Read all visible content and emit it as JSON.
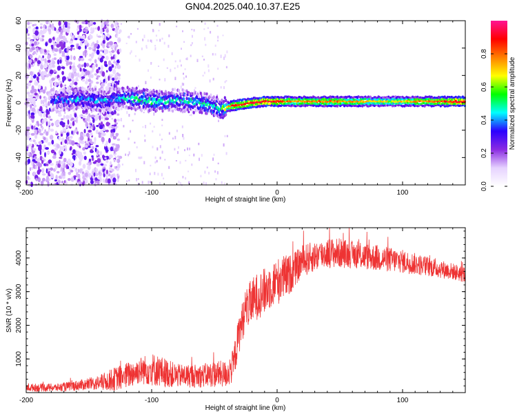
{
  "figure_title": "GN04.2025.040.10.37.E25",
  "chart_data": [
    {
      "type": "heatmap",
      "title": "",
      "xlabel": "Height of straight line (km)",
      "ylabel": "Frequency (Hz)",
      "xlim": [
        -200,
        150
      ],
      "ylim": [
        -60,
        60
      ],
      "xticks": [
        -200,
        -100,
        0,
        100
      ],
      "yticks": [
        -60,
        -40,
        -20,
        0,
        20,
        40,
        60
      ],
      "colorbar": {
        "label": "Normalized spectral amplitude",
        "range": [
          0,
          1
        ],
        "ticks": [
          "0.0",
          "0.2",
          "0.4",
          "0.6",
          "0.8"
        ],
        "colormap": [
          "#ffffff",
          "#e6d2ff",
          "#8a2be2",
          "#2b00ff",
          "#00ffff",
          "#00ff00",
          "#ffff00",
          "#ff8000",
          "#ff0000",
          "#ff1493"
        ]
      },
      "ridge": {
        "x": [
          -175,
          -160,
          -140,
          -120,
          -100,
          -80,
          -60,
          -45,
          -35,
          -20,
          -10,
          0,
          10,
          30,
          60,
          90,
          120,
          150
        ],
        "frequency": [
          2,
          3,
          2,
          4,
          1,
          2,
          0,
          -4,
          -2,
          0,
          1,
          1,
          1,
          1,
          1,
          1,
          1,
          1
        ],
        "amplitude": [
          0.35,
          0.4,
          0.4,
          0.45,
          0.5,
          0.45,
          0.45,
          0.5,
          0.85,
          0.9,
          0.9,
          0.9,
          0.75,
          0.8,
          0.75,
          0.65,
          0.8,
          0.9
        ]
      }
    },
    {
      "type": "line",
      "title": "",
      "xlabel": "Height of straight line (km)",
      "ylabel": "SNR (10 * v/v)",
      "xlim": [
        -200,
        150
      ],
      "ylim": [
        0,
        4900
      ],
      "xticks": [
        -200,
        -100,
        0,
        100
      ],
      "yticks": [
        1000,
        2000,
        3000,
        4000
      ],
      "series": [
        {
          "color": "#ee3333",
          "envelope_x": [
            -200,
            -175,
            -150,
            -140,
            -130,
            -120,
            -110,
            -100,
            -90,
            -80,
            -70,
            -60,
            -50,
            -40,
            -35,
            -30,
            -25,
            -20,
            -15,
            -10,
            -5,
            0,
            5,
            10,
            15,
            20,
            30,
            40,
            50,
            60,
            80,
            100,
            120,
            140,
            150
          ],
          "envelope_y": [
            150,
            150,
            250,
            300,
            400,
            500,
            650,
            700,
            600,
            500,
            500,
            500,
            550,
            550,
            800,
            1800,
            2500,
            2700,
            2900,
            3000,
            3200,
            3300,
            3400,
            3500,
            3700,
            3900,
            4050,
            4150,
            4150,
            4100,
            4000,
            3900,
            3750,
            3600,
            3500
          ],
          "spread": [
            120,
            120,
            180,
            250,
            350,
            400,
            400,
            500,
            450,
            350,
            350,
            350,
            400,
            400,
            500,
            600,
            600,
            700,
            700,
            700,
            700,
            700,
            700,
            600,
            500,
            500,
            450,
            450,
            450,
            400,
            400,
            350,
            300,
            250,
            250
          ]
        }
      ]
    }
  ]
}
